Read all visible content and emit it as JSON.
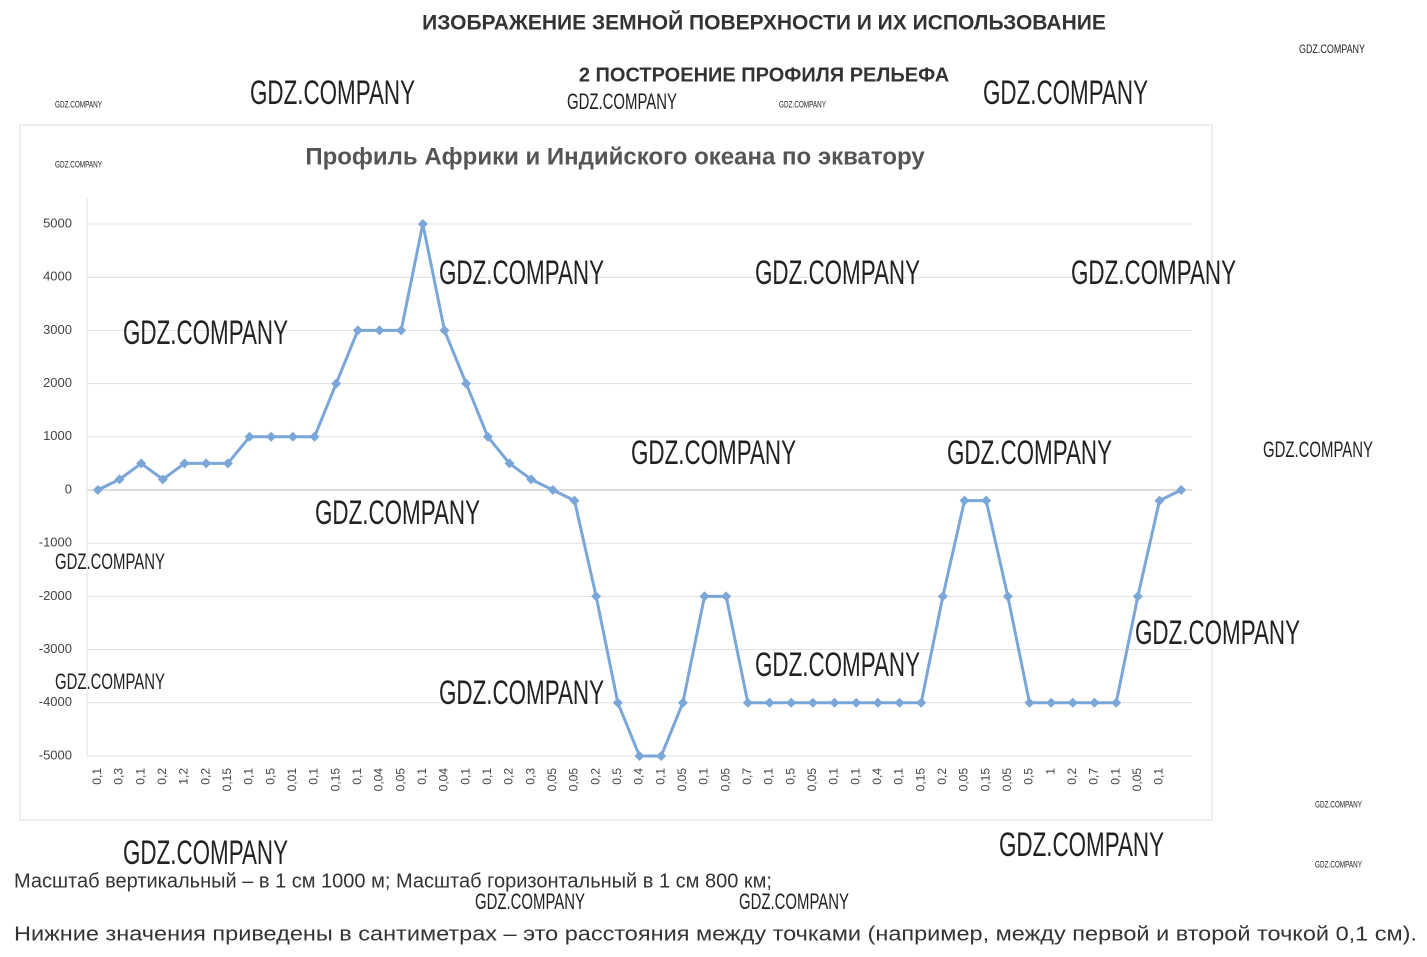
{
  "header": {
    "title": "ИЗОБРАЖЕНИЕ ЗЕМНОЙ ПОВЕРХНОСТИ И ИХ ИСПОЛЬЗОВАНИЕ",
    "subtitle": "2 ПОСТРОЕНИЕ ПРОФИЛЯ РЕЛЬЕФА"
  },
  "watermark": "GDZ.COMPANY",
  "chart_data": {
    "type": "line",
    "title": "Профиль Африки и Индийского океана по экватору",
    "categories": [
      "0,1",
      "0,3",
      "0,1",
      "0,2",
      "1,2",
      "0,2",
      "0,15",
      "0,1",
      "0,5",
      "0,01",
      "0,1",
      "0,15",
      "0,1",
      "0,04",
      "0,05",
      "0,1",
      "0,04",
      "0,1",
      "0,1",
      "0,2",
      "0,3",
      "0,05",
      "0,05",
      "0,2",
      "0,5",
      "0,4",
      "0,1",
      "0,05",
      "0,1",
      "0,05",
      "0,7",
      "0,1",
      "0,5",
      "0,05",
      "0,1",
      "0,1",
      "0,4",
      "0,1",
      "0,15",
      "0,2",
      "0,05",
      "0,15",
      "0,05",
      "0,5",
      "1",
      "0,2",
      "0,7",
      "0,1",
      "0,05",
      "0,1",
      null
    ],
    "values": [
      0,
      200,
      500,
      200,
      500,
      500,
      500,
      1000,
      1000,
      1000,
      1000,
      2000,
      3000,
      3000,
      3000,
      5000,
      3000,
      2000,
      1000,
      500,
      200,
      0,
      -200,
      -2000,
      -4000,
      -5000,
      -5000,
      -4000,
      -2000,
      -2000,
      -4000,
      -4000,
      -4000,
      -4000,
      -4000,
      -4000,
      -4000,
      -4000,
      -4000,
      -2000,
      -200,
      -200,
      -2000,
      -4000,
      -4000,
      -4000,
      -4000,
      -4000,
      -2000,
      -200,
      0
    ],
    "color": "#7aa6d8",
    "ylim": [
      -5000,
      5000
    ],
    "yticks": [
      -5000,
      -4000,
      -3000,
      -2000,
      -1000,
      0,
      1000,
      2000,
      3000,
      4000,
      5000
    ],
    "grid": true
  },
  "notes": [
    "Масштаб вертикальный – в 1 см 1000 м; Масштаб горизонтальный в 1 см 800 км;",
    "Нижние значения приведены в сантиметрах – это расстояния между точками (например, между первой и второй точкой 0,1 см)."
  ]
}
